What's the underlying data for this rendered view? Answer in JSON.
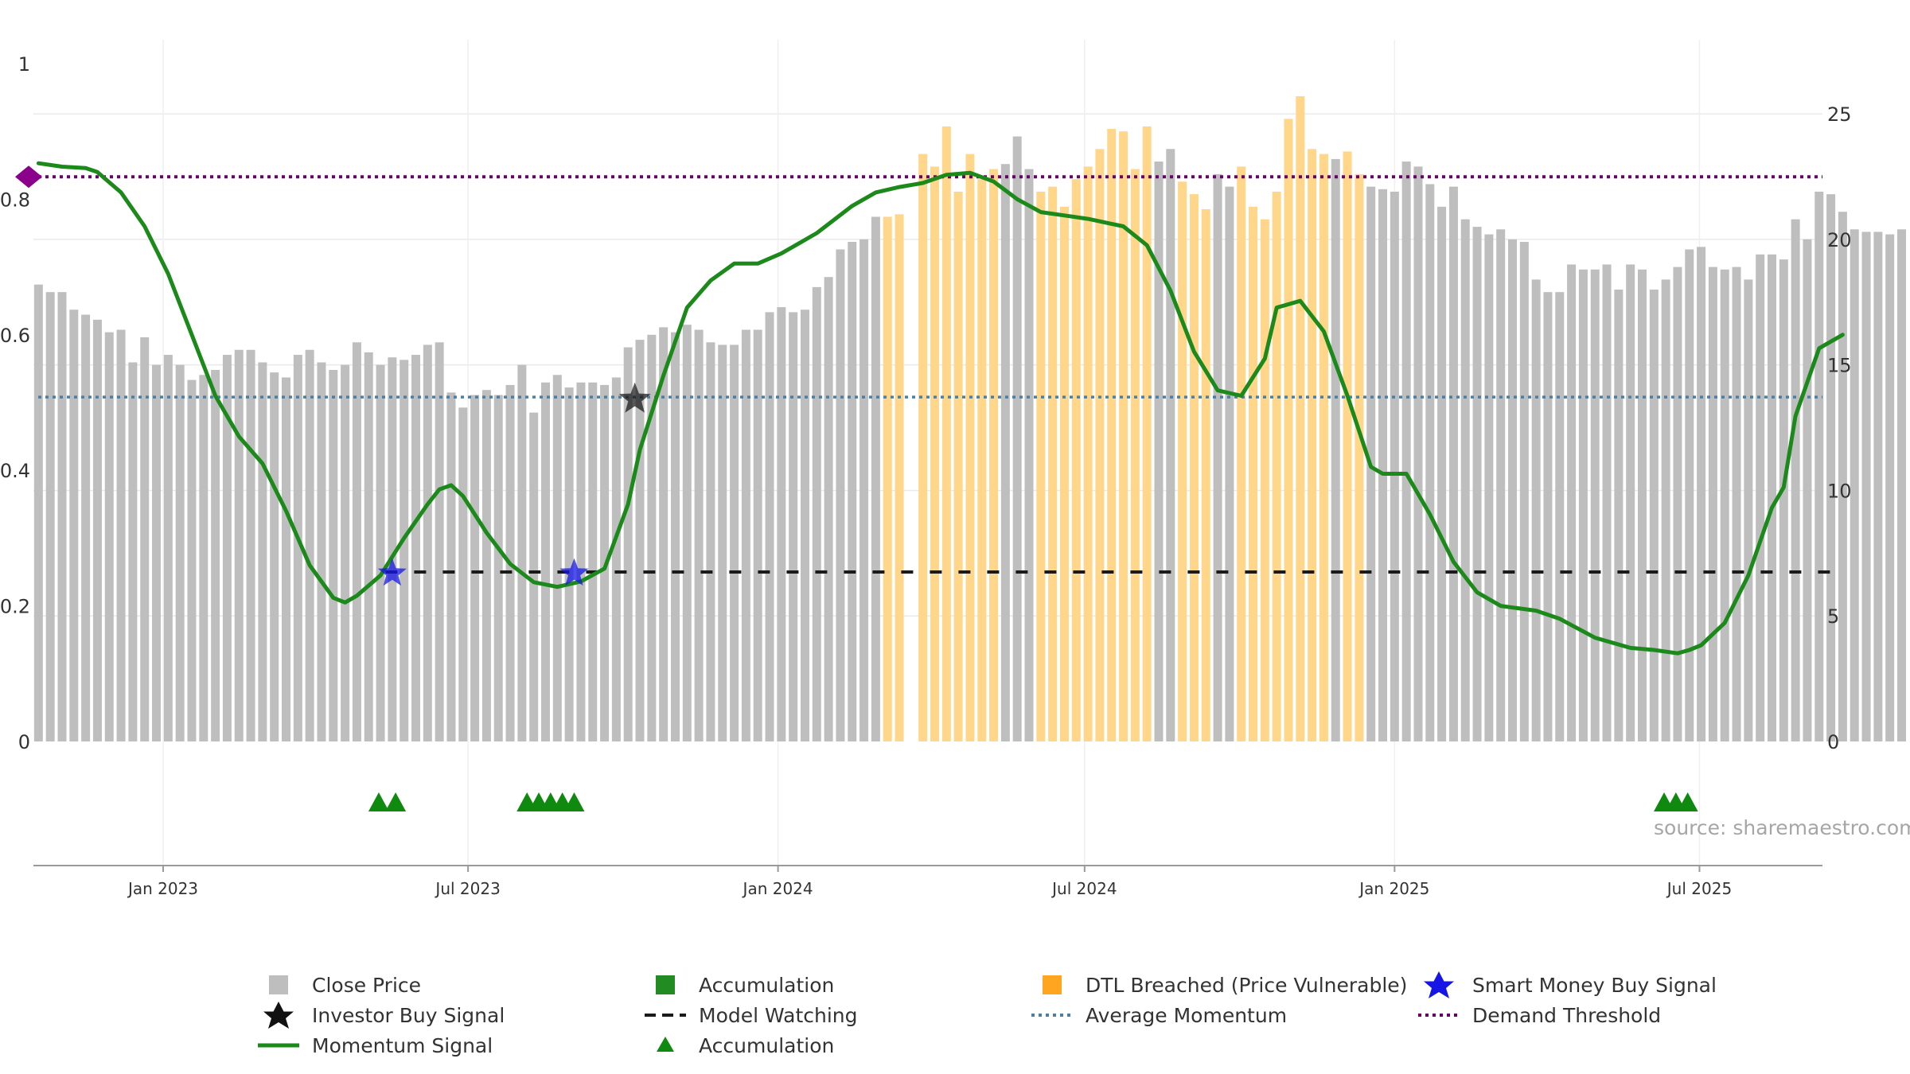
{
  "chart_data": {
    "type": "bar",
    "left_axis": {
      "range": [
        0,
        1
      ],
      "ticks": [
        0,
        0.2,
        0.4,
        0.6,
        0.8,
        1
      ],
      "tick_labels": [
        "0",
        "0.2",
        "0.4",
        "0.6",
        "0.8",
        "1"
      ]
    },
    "right_axis": {
      "range": [
        0,
        27
      ],
      "ticks": [
        0,
        5,
        10,
        15,
        20,
        25
      ],
      "tick_labels": [
        "0",
        "5",
        "10",
        "15",
        "20",
        "25"
      ]
    },
    "x_axis": {
      "range": [
        "2022-10-16",
        "2025-09-12"
      ],
      "ticks": [
        "2023-01-01",
        "2023-07-01",
        "2024-01-01",
        "2024-07-01",
        "2025-01-01",
        "2025-07-01"
      ],
      "tick_labels": [
        "Jan 2023",
        "Jul 2023",
        "Jan 2024",
        "Jul 2024",
        "Jan 2025",
        "Jul 2025"
      ]
    },
    "grid": true,
    "close_price": {
      "name": "Close Price",
      "start_date": "2022-10-19",
      "interval_days": 7,
      "values": [
        18.2,
        17.9,
        17.9,
        17.2,
        17.0,
        16.8,
        16.3,
        16.4,
        15.1,
        16.1,
        15.0,
        15.4,
        15.0,
        14.4,
        14.6,
        14.8,
        15.4,
        15.6,
        15.6,
        15.1,
        14.7,
        14.5,
        15.4,
        15.6,
        15.1,
        14.8,
        15.0,
        15.9,
        15.5,
        15.0,
        15.3,
        15.2,
        15.4,
        15.8,
        15.9,
        13.9,
        13.3,
        13.8,
        14.0,
        13.8,
        14.2,
        15.0,
        13.1,
        14.3,
        14.6,
        14.1,
        14.3,
        14.3,
        14.2,
        14.5,
        15.7,
        16.0,
        16.2,
        16.5,
        16.3,
        16.6,
        16.4,
        15.9,
        15.8,
        15.8,
        16.4,
        16.4,
        17.1,
        17.3,
        17.1,
        17.2,
        18.1,
        18.5,
        19.6,
        19.9,
        20.0,
        20.9,
        20.9,
        21.0,
        0,
        23.4,
        22.9,
        24.5,
        21.9,
        23.4,
        22.4,
        22.8,
        23.0,
        24.1,
        22.8,
        21.9,
        22.1,
        21.3,
        22.4,
        22.9,
        23.6,
        24.4,
        24.3,
        22.8,
        24.5,
        23.1,
        23.6,
        22.3,
        21.8,
        21.2,
        22.6,
        22.1,
        22.9,
        21.3,
        20.8,
        21.9,
        24.8,
        25.7,
        23.6,
        23.4,
        23.2,
        23.5,
        22.6,
        22.1,
        22.0,
        21.9,
        23.1,
        22.9,
        22.2,
        21.3,
        22.1,
        20.8,
        20.5,
        20.2,
        20.4,
        20.0,
        19.9,
        18.4,
        17.9,
        17.9,
        19.0,
        18.8,
        18.8,
        19.0,
        18.0,
        19.0,
        18.8,
        18.0,
        18.4,
        18.9,
        19.6,
        19.7,
        18.9,
        18.8,
        18.9,
        18.4,
        19.4,
        19.4,
        19.2,
        20.8,
        20.0,
        21.9,
        21.8,
        21.1,
        20.4,
        20.3,
        20.3,
        20.2,
        20.4
      ]
    },
    "accumulation_bars": {
      "name": "Accumulation",
      "dates": [
        "2023-05-13",
        "2023-05-20",
        "2023-08-12",
        "2023-08-19",
        "2023-08-26",
        "2023-09-02",
        "2025-06-14",
        "2025-06-21",
        "2025-06-28"
      ]
    },
    "dtl_breached_bars": {
      "name": "DTL Breached (Price Vulnerable)",
      "date_ranges": [
        [
          "2024-03-06",
          "2024-05-08"
        ],
        [
          "2024-06-05",
          "2024-08-07"
        ],
        [
          "2024-08-28",
          "2024-09-11"
        ],
        [
          "2024-10-02",
          "2024-11-20"
        ],
        [
          "2024-12-04",
          "2024-12-11"
        ]
      ]
    },
    "momentum_signal": {
      "name": "Momentum Signal",
      "points": [
        [
          "2022-10-19",
          0.853
        ],
        [
          "2022-11-02",
          0.848
        ],
        [
          "2022-11-16",
          0.846
        ],
        [
          "2022-11-23",
          0.84
        ],
        [
          "2022-12-07",
          0.81
        ],
        [
          "2022-12-21",
          0.76
        ],
        [
          "2023-01-04",
          0.69
        ],
        [
          "2023-01-18",
          0.6
        ],
        [
          "2023-02-01",
          0.51
        ],
        [
          "2023-02-15",
          0.45
        ],
        [
          "2023-03-01",
          0.41
        ],
        [
          "2023-03-15",
          0.34
        ],
        [
          "2023-03-29",
          0.26
        ],
        [
          "2023-04-12",
          0.212
        ],
        [
          "2023-04-19",
          0.205
        ],
        [
          "2023-04-26",
          0.215
        ],
        [
          "2023-05-10",
          0.245
        ],
        [
          "2023-05-24",
          0.3
        ],
        [
          "2023-06-07",
          0.35
        ],
        [
          "2023-06-14",
          0.372
        ],
        [
          "2023-06-21",
          0.378
        ],
        [
          "2023-06-28",
          0.362
        ],
        [
          "2023-07-12",
          0.308
        ],
        [
          "2023-07-26",
          0.262
        ],
        [
          "2023-08-09",
          0.235
        ],
        [
          "2023-08-23",
          0.228
        ],
        [
          "2023-09-06",
          0.236
        ],
        [
          "2023-09-20",
          0.255
        ],
        [
          "2023-10-04",
          0.35
        ],
        [
          "2023-10-11",
          0.43
        ],
        [
          "2023-10-25",
          0.54
        ],
        [
          "2023-11-08",
          0.64
        ],
        [
          "2023-11-22",
          0.68
        ],
        [
          "2023-12-06",
          0.705
        ],
        [
          "2023-12-20",
          0.705
        ],
        [
          "2024-01-03",
          0.72
        ],
        [
          "2024-01-24",
          0.75
        ],
        [
          "2024-02-14",
          0.79
        ],
        [
          "2024-02-28",
          0.81
        ],
        [
          "2024-03-13",
          0.818
        ],
        [
          "2024-03-27",
          0.824
        ],
        [
          "2024-04-10",
          0.836
        ],
        [
          "2024-04-24",
          0.839
        ],
        [
          "2024-05-08",
          0.826
        ],
        [
          "2024-05-22",
          0.8
        ],
        [
          "2024-06-05",
          0.781
        ],
        [
          "2024-06-19",
          0.776
        ],
        [
          "2024-07-03",
          0.771
        ],
        [
          "2024-07-24",
          0.76
        ],
        [
          "2024-08-07",
          0.732
        ],
        [
          "2024-08-21",
          0.665
        ],
        [
          "2024-09-04",
          0.575
        ],
        [
          "2024-09-18",
          0.518
        ],
        [
          "2024-10-02",
          0.51
        ],
        [
          "2024-10-16",
          0.565
        ],
        [
          "2024-10-23",
          0.64
        ],
        [
          "2024-11-06",
          0.65
        ],
        [
          "2024-11-20",
          0.605
        ],
        [
          "2024-12-04",
          0.51
        ],
        [
          "2024-12-18",
          0.405
        ],
        [
          "2024-12-25",
          0.395
        ],
        [
          "2025-01-08",
          0.395
        ],
        [
          "2025-01-22",
          0.335
        ],
        [
          "2025-02-05",
          0.265
        ],
        [
          "2025-02-19",
          0.22
        ],
        [
          "2025-03-05",
          0.2
        ],
        [
          "2025-03-26",
          0.193
        ],
        [
          "2025-04-09",
          0.181
        ],
        [
          "2025-04-30",
          0.153
        ],
        [
          "2025-05-21",
          0.138
        ],
        [
          "2025-06-04",
          0.135
        ],
        [
          "2025-06-18",
          0.13
        ],
        [
          "2025-06-25",
          0.135
        ],
        [
          "2025-07-02",
          0.142
        ],
        [
          "2025-07-16",
          0.175
        ],
        [
          "2025-07-30",
          0.245
        ],
        [
          "2025-08-13",
          0.345
        ],
        [
          "2025-08-20",
          0.375
        ],
        [
          "2025-08-27",
          0.48
        ],
        [
          "2025-09-10",
          0.58
        ],
        [
          "2025-09-24",
          0.6
        ]
      ]
    },
    "average_momentum": {
      "name": "Average Momentum",
      "value": 0.508
    },
    "demand_threshold": {
      "name": "Demand Threshold",
      "value": 0.833
    },
    "model_watching": {
      "name": "Model Watching",
      "value": 0.25,
      "range": [
        "2023-05-13",
        "2025-09-24"
      ]
    },
    "smart_money_buy_signals": {
      "name": "Smart Money Buy Signal",
      "points": [
        [
          "2023-05-17",
          0.248
        ],
        [
          "2023-09-02",
          0.248
        ]
      ]
    },
    "investor_buy_signals": {
      "name": "Investor Buy Signal",
      "points": [
        [
          "2023-10-08",
          0.505
        ]
      ]
    },
    "accumulation_markers": {
      "name": "Accumulation",
      "dates": [
        "2023-05-09",
        "2023-05-19",
        "2023-08-05",
        "2023-08-12",
        "2023-08-19",
        "2023-08-26",
        "2023-09-02",
        "2025-06-10",
        "2025-06-17",
        "2025-06-24"
      ]
    },
    "colors": {
      "close_price": "#bebebe",
      "accumulation": "#228b22",
      "dtl_breached": "#ffd68a",
      "momentum": "#1b8a1b",
      "average_momentum": "#4b7fa3",
      "demand_threshold": "#6b006b",
      "model_watching": "#1a1a1a",
      "smart_money": "#1515e6",
      "investor_buy": "#111111",
      "accumulation_marker": "#0f8a0f"
    }
  },
  "watermark": "source: sharemaestro.com",
  "legend": [
    {
      "label": "Close Price",
      "symbol": "gray-square-icon"
    },
    {
      "label": "Investor Buy Signal",
      "symbol": "black-star-icon"
    },
    {
      "label": "Momentum Signal",
      "symbol": "green-line-icon"
    },
    {
      "label": "Accumulation",
      "symbol": "green-square-icon"
    },
    {
      "label": "Model Watching",
      "symbol": "black-dashed-line-icon"
    },
    {
      "label": "Accumulation",
      "symbol": "green-triangle-icon"
    },
    {
      "label": "DTL Breached (Price Vulnerable)",
      "symbol": "orange-square-icon"
    },
    {
      "label": "Average Momentum",
      "symbol": "blue-dotted-line-icon"
    },
    {
      "label": "Smart Money Buy Signal",
      "symbol": "blue-star-icon"
    },
    {
      "label": "Demand Threshold",
      "symbol": "purple-dotted-line-icon"
    }
  ]
}
